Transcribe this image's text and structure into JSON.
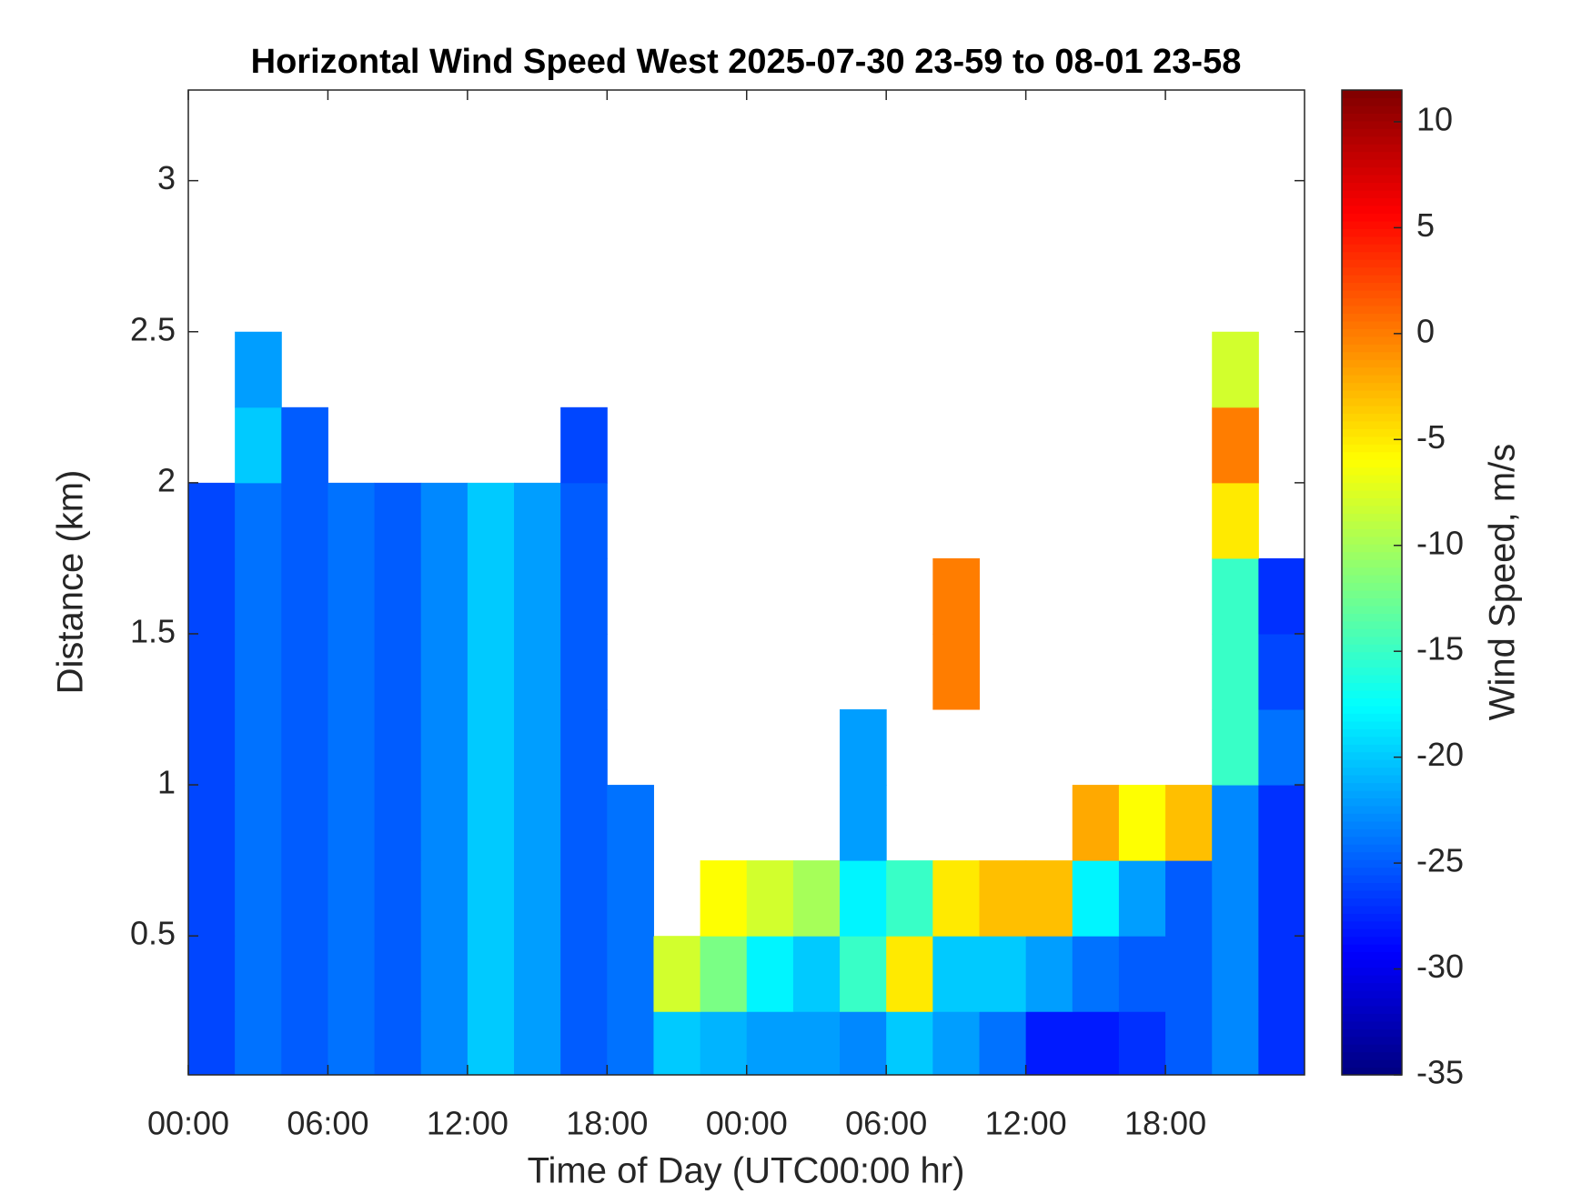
{
  "chart_data": {
    "type": "heatmap",
    "title": "Horizontal Wind Speed West 2025-07-30 23-59 to 08-01 23-58",
    "x_label": "Time of Day (UTC00:00 hr)",
    "y_label": "Distance (km)",
    "colorbar_label": "Wind Speed, m/s",
    "colormap": "jet",
    "x_bins": [
      0,
      2,
      4,
      6,
      8,
      10,
      12,
      14,
      16,
      18,
      20,
      22,
      24,
      26,
      28,
      30,
      32,
      34,
      36,
      38,
      40,
      42,
      44,
      46,
      48
    ],
    "y_bins": [
      0.04,
      0.25,
      0.5,
      0.75,
      1.0,
      1.25,
      1.5,
      1.75,
      2.0,
      2.25,
      2.5
    ],
    "values": [
      [
        -26,
        -24,
        -25,
        -24,
        -25,
        -23,
        -20,
        -22,
        -25,
        -24,
        -20,
        -21,
        -22,
        -22,
        -23,
        -20,
        -22,
        -24,
        -28,
        -28,
        -27,
        -25,
        -23,
        -27
      ],
      [
        -26,
        -24,
        -25,
        -24,
        -25,
        -23,
        -20,
        -22,
        -25,
        -24,
        -8,
        -12,
        -18,
        -20,
        -15,
        -5,
        -20,
        -20,
        -22,
        -24,
        -25,
        -25,
        -23,
        -27
      ],
      [
        -26,
        -24,
        -25,
        -24,
        -25,
        -23,
        -20,
        -22,
        -25,
        -24,
        null,
        -6,
        -8,
        -10,
        -18,
        -15,
        -5,
        -3,
        -3,
        -18,
        -22,
        -25,
        -23,
        -27
      ],
      [
        -26,
        -24,
        -25,
        -24,
        -25,
        -23,
        -20,
        -22,
        -25,
        -24,
        null,
        null,
        null,
        null,
        -22,
        null,
        null,
        null,
        null,
        -2,
        -6,
        -3,
        -23,
        -27
      ],
      [
        -26,
        -24,
        -25,
        -24,
        -25,
        -23,
        -20,
        -22,
        -25,
        null,
        null,
        null,
        null,
        null,
        -22,
        null,
        null,
        null,
        null,
        null,
        null,
        null,
        -15,
        -24
      ],
      [
        -26,
        -24,
        -25,
        -24,
        -25,
        -23,
        -20,
        -22,
        -25,
        null,
        null,
        null,
        null,
        null,
        null,
        null,
        0,
        null,
        null,
        null,
        null,
        null,
        -15,
        -26
      ],
      [
        -26,
        -24,
        -25,
        -24,
        -25,
        -23,
        -20,
        -22,
        -25,
        null,
        null,
        null,
        null,
        null,
        null,
        null,
        0,
        null,
        null,
        null,
        null,
        null,
        -15,
        -27
      ],
      [
        -26,
        -24,
        -25,
        -24,
        -25,
        -23,
        -20,
        -22,
        -25,
        null,
        null,
        null,
        null,
        null,
        null,
        null,
        null,
        null,
        null,
        null,
        null,
        null,
        -5,
        null
      ],
      [
        null,
        -20,
        -25,
        null,
        null,
        null,
        null,
        null,
        -26,
        null,
        null,
        null,
        null,
        null,
        null,
        null,
        null,
        null,
        null,
        null,
        null,
        null,
        0,
        null
      ],
      [
        null,
        -22,
        null,
        null,
        null,
        null,
        null,
        null,
        null,
        null,
        null,
        null,
        null,
        null,
        null,
        null,
        null,
        null,
        null,
        null,
        null,
        null,
        -8,
        null
      ]
    ],
    "xlim": [
      0,
      47.98
    ],
    "ylim": [
      0.04,
      3.3
    ],
    "clim": [
      -35,
      11.5
    ],
    "xticks": [
      {
        "value": 0,
        "label": "00:00"
      },
      {
        "value": 6,
        "label": "06:00"
      },
      {
        "value": 12,
        "label": "12:00"
      },
      {
        "value": 18,
        "label": "18:00"
      },
      {
        "value": 24,
        "label": "00:00"
      },
      {
        "value": 30,
        "label": "06:00"
      },
      {
        "value": 36,
        "label": "12:00"
      },
      {
        "value": 42,
        "label": "18:00"
      }
    ],
    "yticks": [
      0.5,
      1,
      1.5,
      2,
      2.5,
      3
    ],
    "cticks": [
      -35,
      -30,
      -25,
      -20,
      -15,
      -10,
      -5,
      0,
      5,
      10
    ]
  }
}
